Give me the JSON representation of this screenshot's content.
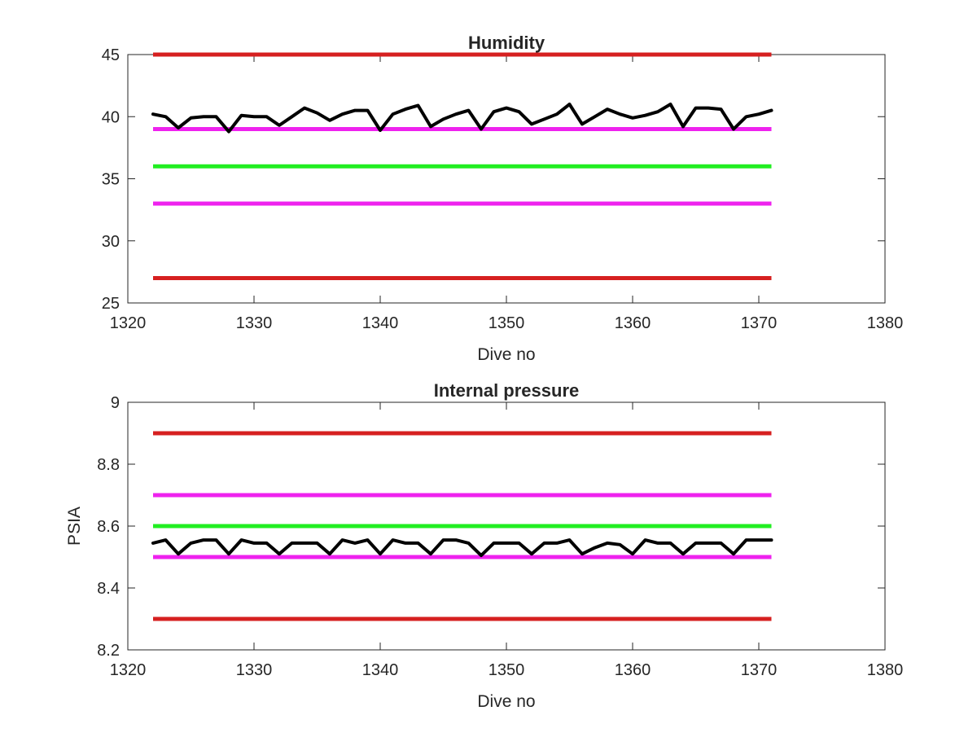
{
  "chart_data": [
    {
      "type": "line",
      "title": "Humidity",
      "xlabel": "Dive no",
      "ylabel": "",
      "xlim": [
        1320,
        1380
      ],
      "ylim": [
        25,
        45
      ],
      "xticks": [
        1320,
        1330,
        1340,
        1350,
        1360,
        1370,
        1380
      ],
      "yticks": [
        25,
        30,
        35,
        40,
        45
      ],
      "grid": false,
      "legend": "none",
      "thresholds": [
        {
          "y": 45,
          "color": "#d62020",
          "x_range": [
            1322,
            1371
          ]
        },
        {
          "y": 39,
          "color": "#ee22ee",
          "x_range": [
            1322,
            1371
          ]
        },
        {
          "y": 36,
          "color": "#22ee22",
          "x_range": [
            1322,
            1371
          ]
        },
        {
          "y": 33,
          "color": "#ee22ee",
          "x_range": [
            1322,
            1371
          ]
        },
        {
          "y": 27,
          "color": "#d62020",
          "x_range": [
            1322,
            1371
          ]
        }
      ],
      "series": [
        {
          "color": "#000000",
          "x": [
            1322,
            1323,
            1324,
            1325,
            1326,
            1327,
            1328,
            1329,
            1330,
            1331,
            1332,
            1333,
            1334,
            1335,
            1336,
            1337,
            1338,
            1339,
            1340,
            1341,
            1342,
            1343,
            1344,
            1345,
            1346,
            1347,
            1348,
            1349,
            1350,
            1351,
            1352,
            1353,
            1354,
            1355,
            1356,
            1357,
            1358,
            1359,
            1360,
            1361,
            1362,
            1363,
            1364,
            1365,
            1366,
            1367,
            1368,
            1369,
            1370,
            1371
          ],
          "y": [
            40.2,
            40.0,
            39.1,
            39.9,
            40.0,
            40.0,
            38.8,
            40.1,
            40.0,
            40.0,
            39.3,
            40.0,
            40.7,
            40.3,
            39.7,
            40.2,
            40.5,
            40.5,
            38.9,
            40.2,
            40.6,
            40.9,
            39.2,
            39.8,
            40.2,
            40.5,
            39.0,
            40.4,
            40.7,
            40.4,
            39.4,
            39.8,
            40.2,
            41.0,
            39.4,
            40.0,
            40.6,
            40.2,
            39.9,
            40.1,
            40.4,
            41.0,
            39.2,
            40.7,
            40.7,
            40.6,
            39.0,
            40.0,
            40.2,
            40.5
          ]
        }
      ]
    },
    {
      "type": "line",
      "title": "Internal pressure",
      "xlabel": "Dive no",
      "ylabel": "PSIA",
      "xlim": [
        1320,
        1380
      ],
      "ylim": [
        8.2,
        9.0
      ],
      "xticks": [
        1320,
        1330,
        1340,
        1350,
        1360,
        1370,
        1380
      ],
      "yticks": [
        8.2,
        8.4,
        8.6,
        8.8,
        9.0
      ],
      "ytick_labels": [
        "8.2",
        "8.4",
        "8.6",
        "8.8",
        "9"
      ],
      "grid": false,
      "legend": "none",
      "thresholds": [
        {
          "y": 8.9,
          "color": "#d62020",
          "x_range": [
            1322,
            1371
          ]
        },
        {
          "y": 8.7,
          "color": "#ee22ee",
          "x_range": [
            1322,
            1371
          ]
        },
        {
          "y": 8.6,
          "color": "#22ee22",
          "x_range": [
            1322,
            1371
          ]
        },
        {
          "y": 8.5,
          "color": "#ee22ee",
          "x_range": [
            1322,
            1371
          ]
        },
        {
          "y": 8.3,
          "color": "#d62020",
          "x_range": [
            1322,
            1371
          ]
        }
      ],
      "series": [
        {
          "color": "#000000",
          "x": [
            1322,
            1323,
            1324,
            1325,
            1326,
            1327,
            1328,
            1329,
            1330,
            1331,
            1332,
            1333,
            1334,
            1335,
            1336,
            1337,
            1338,
            1339,
            1340,
            1341,
            1342,
            1343,
            1344,
            1345,
            1346,
            1347,
            1348,
            1349,
            1350,
            1351,
            1352,
            1353,
            1354,
            1355,
            1356,
            1357,
            1358,
            1359,
            1360,
            1361,
            1362,
            1363,
            1364,
            1365,
            1366,
            1367,
            1368,
            1369,
            1370,
            1371
          ],
          "y": [
            8.545,
            8.555,
            8.51,
            8.545,
            8.555,
            8.555,
            8.51,
            8.555,
            8.545,
            8.545,
            8.51,
            8.545,
            8.545,
            8.545,
            8.51,
            8.555,
            8.545,
            8.555,
            8.51,
            8.555,
            8.545,
            8.545,
            8.51,
            8.555,
            8.555,
            8.545,
            8.505,
            8.545,
            8.545,
            8.545,
            8.51,
            8.545,
            8.545,
            8.555,
            8.51,
            8.53,
            8.545,
            8.54,
            8.51,
            8.555,
            8.545,
            8.545,
            8.51,
            8.545,
            8.545,
            8.545,
            8.51,
            8.555,
            8.555,
            8.555
          ]
        }
      ]
    }
  ]
}
